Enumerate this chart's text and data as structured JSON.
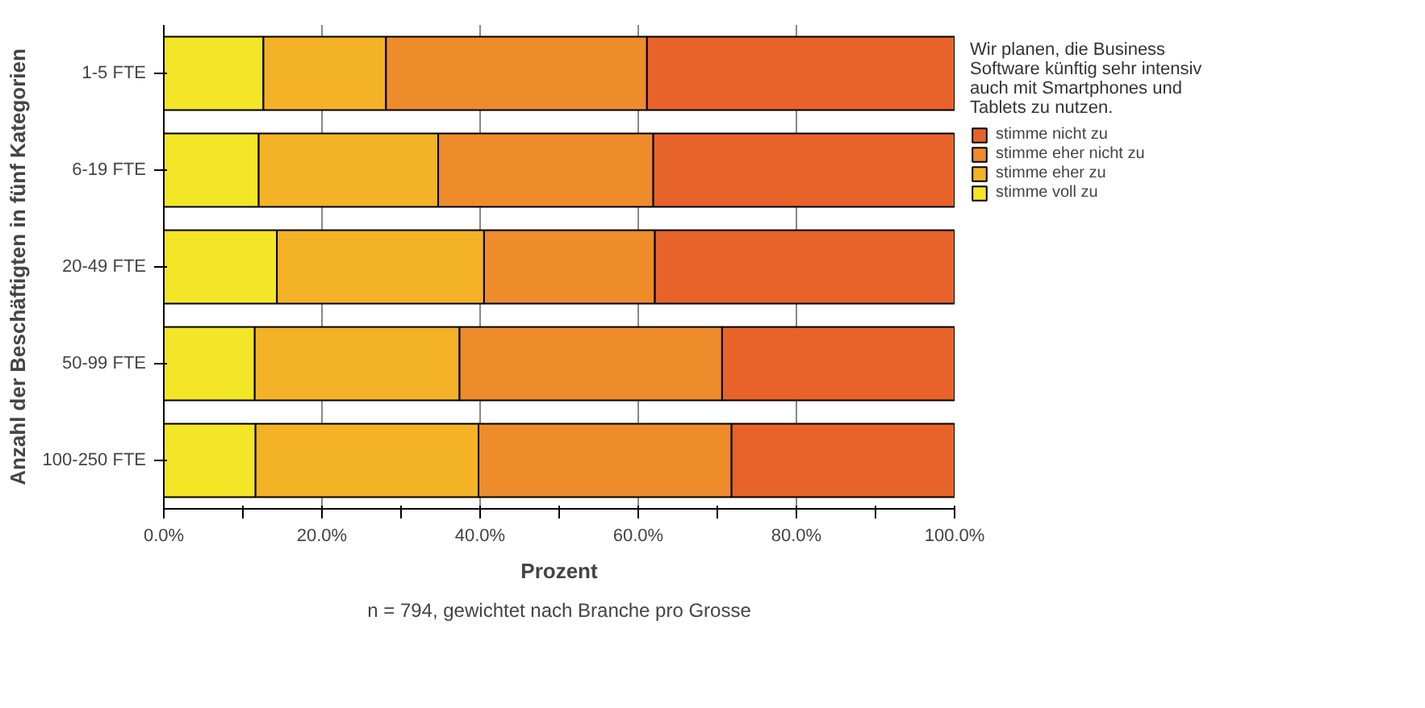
{
  "chart_data": {
    "type": "bar",
    "orientation": "horizontal",
    "stacked": true,
    "categories": [
      "1-5 FTE",
      "6-19 FTE",
      "20-49 FTE",
      "50-99 FTE",
      "100-250 FTE"
    ],
    "series": [
      {
        "name": "stimme voll zu",
        "color": "#f2e626",
        "values": [
          12.6,
          12.0,
          14.3,
          11.5,
          11.6
        ]
      },
      {
        "name": "stimme eher zu",
        "color": "#f4b227",
        "values": [
          15.5,
          22.7,
          26.2,
          25.9,
          28.2
        ]
      },
      {
        "name": "stimme eher nicht zu",
        "color": "#ee8c2c",
        "values": [
          33.0,
          27.2,
          21.6,
          33.2,
          32.0
        ]
      },
      {
        "name": "stimme nicht zu",
        "color": "#e8632a",
        "values": [
          38.9,
          38.1,
          37.9,
          29.4,
          28.2
        ]
      }
    ],
    "xlim": [
      0,
      100
    ],
    "xticks": [
      {
        "value": 0,
        "label": "0.0%"
      },
      {
        "value": 10,
        "label": null
      },
      {
        "value": 20,
        "label": "20.0%"
      },
      {
        "value": 30,
        "label": null
      },
      {
        "value": 40,
        "label": "40.0%"
      },
      {
        "value": 50,
        "label": null
      },
      {
        "value": 60,
        "label": "60.0%"
      },
      {
        "value": 70,
        "label": null
      },
      {
        "value": 80,
        "label": "80.0%"
      },
      {
        "value": 90,
        "label": null
      },
      {
        "value": 100,
        "label": "100.0%"
      }
    ],
    "xlabel": "Prozent",
    "ylabel": "Anzahl der Beschäftigten in fünf Kategorien",
    "legend_title": "Wir planen, die Business Software künftig sehr intensiv auch mit Smartphones und Tablets zu nutzen.",
    "legend": "right",
    "grid": "x",
    "annotations": [
      "n = 794, gewichtet nach Branche pro Grosse"
    ]
  }
}
